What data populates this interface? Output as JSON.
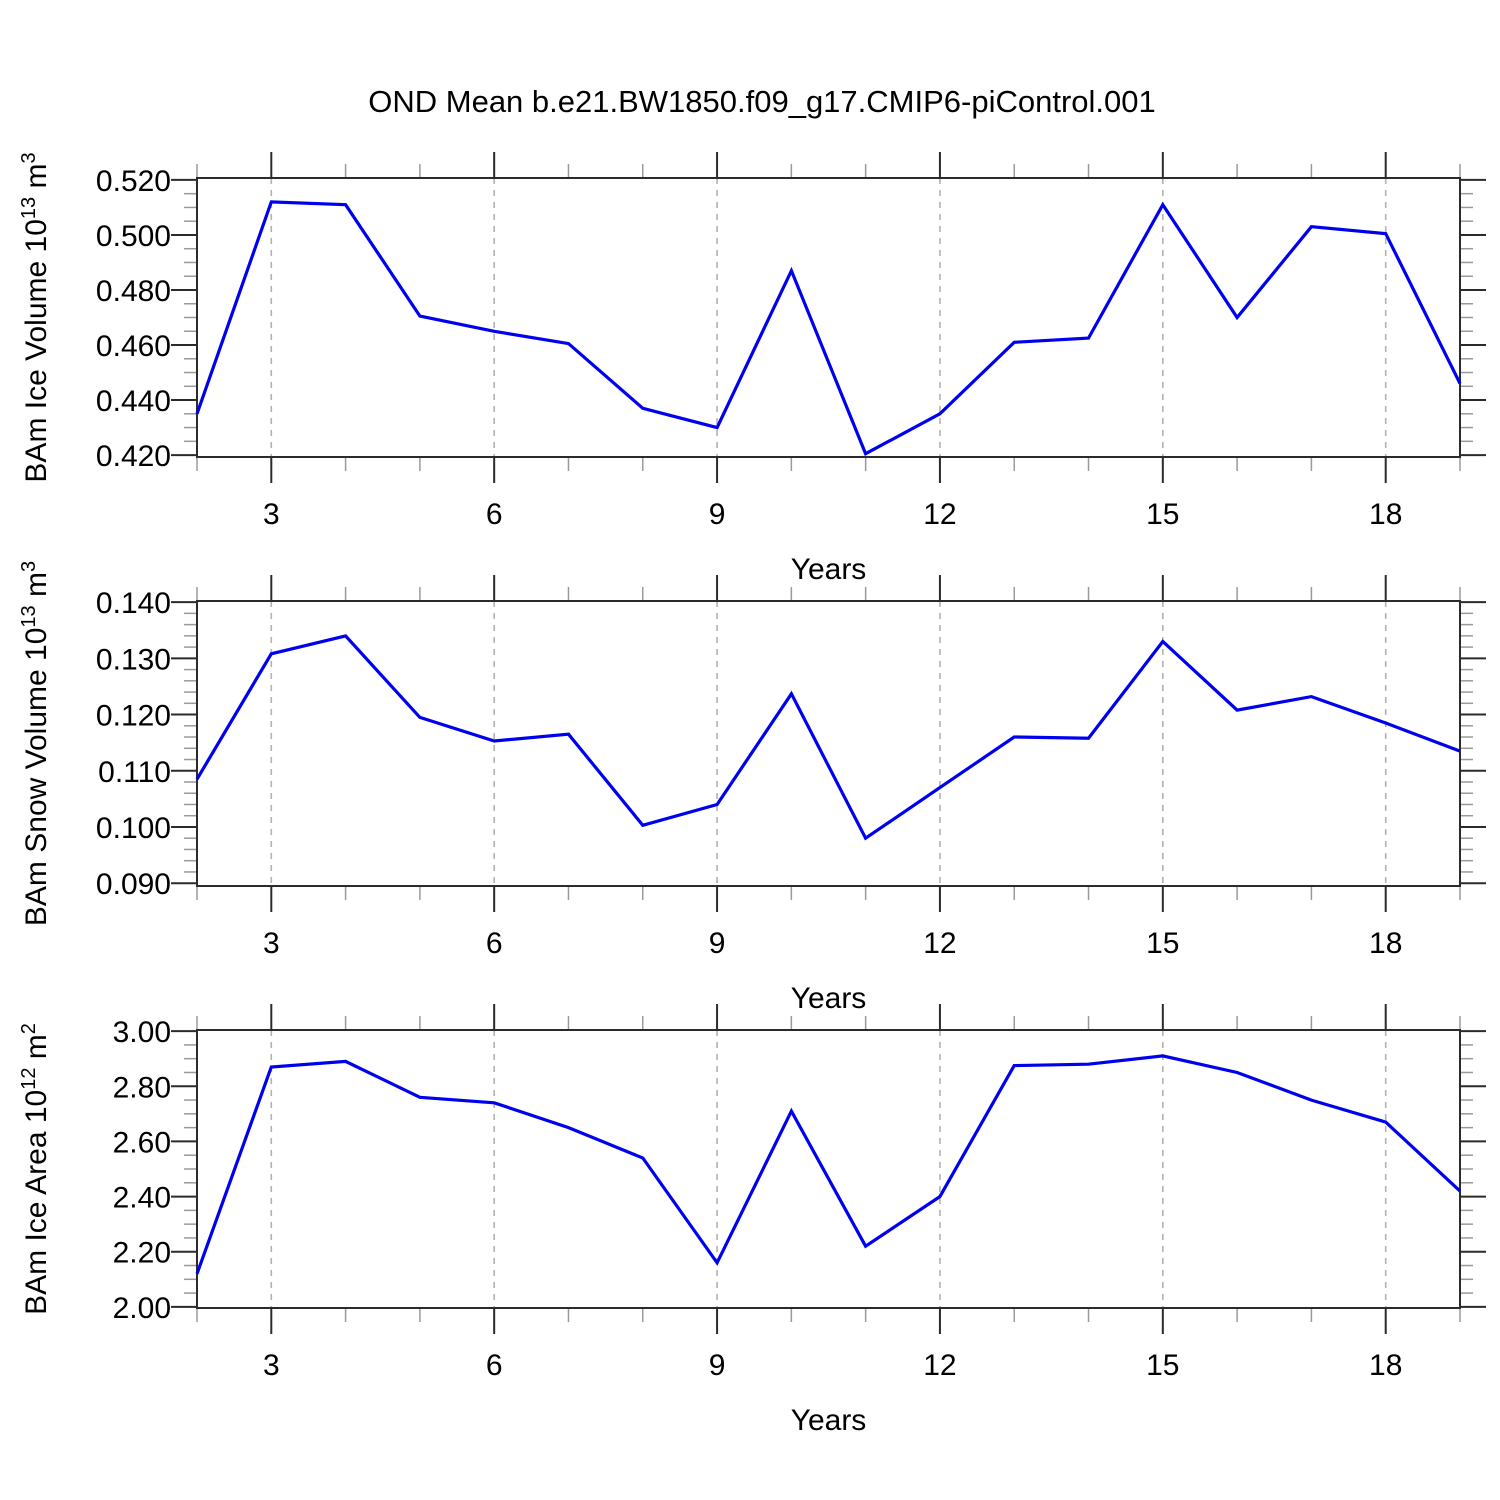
{
  "title": "OND Mean b.e21.BW1850.f09_g17.CMIP6-piControl.001",
  "colors": {
    "line": "#0000f0",
    "grid": "#b2b2b2",
    "axis": "#2b2b2b",
    "major_tick": "#2b2b2b",
    "minor_tick": "#9a9a9a",
    "text": "#000000",
    "background": "#ffffff"
  },
  "x_axis": {
    "label": "Years",
    "major_ticks": [
      3,
      6,
      9,
      12,
      15,
      18
    ],
    "major_tick_labels": [
      "3",
      "6",
      "9",
      "12",
      "15",
      "18"
    ],
    "minor_step": 1,
    "range": [
      2,
      19
    ]
  },
  "chart_data": [
    {
      "type": "line",
      "id": "ice-volume",
      "ylabel_parts": [
        {
          "t": "BAm Ice Volume 10"
        },
        {
          "t": "13",
          "sup": true
        },
        {
          "t": " m"
        },
        {
          "t": "3",
          "sup": true
        }
      ],
      "xlabel": "Years",
      "x": [
        2,
        3,
        4,
        5,
        6,
        7,
        8,
        9,
        10,
        11,
        12,
        13,
        14,
        15,
        16,
        17,
        18,
        19
      ],
      "values": [
        0.435,
        0.512,
        0.511,
        0.4705,
        0.465,
        0.4605,
        0.437,
        0.43,
        0.487,
        0.4205,
        0.435,
        0.461,
        0.4625,
        0.511,
        0.47,
        0.503,
        0.5005,
        0.446
      ],
      "yticks": [
        0.42,
        0.44,
        0.46,
        0.48,
        0.5,
        0.52
      ],
      "ytick_labels": [
        "0.420",
        "0.440",
        "0.460",
        "0.480",
        "0.500",
        "0.520"
      ],
      "y_minor_step": 0.005,
      "ylim": [
        0.4193,
        0.5207
      ],
      "grid": "vertical-dashed",
      "legend": "none"
    },
    {
      "type": "line",
      "id": "snow-volume",
      "ylabel_parts": [
        {
          "t": "BAm Snow Volume 10"
        },
        {
          "t": "13",
          "sup": true
        },
        {
          "t": " m"
        },
        {
          "t": "3",
          "sup": true
        }
      ],
      "xlabel": "Years",
      "x": [
        2,
        3,
        4,
        5,
        6,
        7,
        8,
        9,
        10,
        11,
        12,
        13,
        14,
        15,
        16,
        17,
        18,
        19
      ],
      "values": [
        0.1085,
        0.1308,
        0.134,
        0.1195,
        0.1153,
        0.1165,
        0.1003,
        0.104,
        0.1237,
        0.098,
        0.107,
        0.116,
        0.1158,
        0.133,
        0.1208,
        0.1232,
        0.1185,
        0.1135
      ],
      "yticks": [
        0.09,
        0.1,
        0.11,
        0.12,
        0.13,
        0.14
      ],
      "ytick_labels": [
        "0.090",
        "0.100",
        "0.110",
        "0.120",
        "0.130",
        "0.140"
      ],
      "y_minor_step": 0.002,
      "ylim": [
        0.0895,
        0.1402
      ],
      "grid": "vertical-dashed",
      "legend": "none"
    },
    {
      "type": "line",
      "id": "ice-area",
      "ylabel_parts": [
        {
          "t": "BAm Ice Area 10"
        },
        {
          "t": "12",
          "sup": true
        },
        {
          "t": " m"
        },
        {
          "t": "2",
          "sup": true
        }
      ],
      "xlabel": "Years",
      "x": [
        2,
        3,
        4,
        5,
        6,
        7,
        8,
        9,
        10,
        11,
        12,
        13,
        14,
        15,
        16,
        17,
        18,
        19
      ],
      "values": [
        2.12,
        2.87,
        2.89,
        2.76,
        2.74,
        2.65,
        2.54,
        2.16,
        2.71,
        2.22,
        2.4,
        2.875,
        2.88,
        2.91,
        2.85,
        2.75,
        2.67,
        2.42
      ],
      "yticks": [
        2.0,
        2.2,
        2.4,
        2.6,
        2.8,
        3.0
      ],
      "ytick_labels": [
        "2.00",
        "2.20",
        "2.40",
        "2.60",
        "2.80",
        "3.00"
      ],
      "y_minor_step": 0.05,
      "ylim": [
        1.996,
        3.004
      ],
      "grid": "vertical-dashed",
      "legend": "none"
    }
  ]
}
